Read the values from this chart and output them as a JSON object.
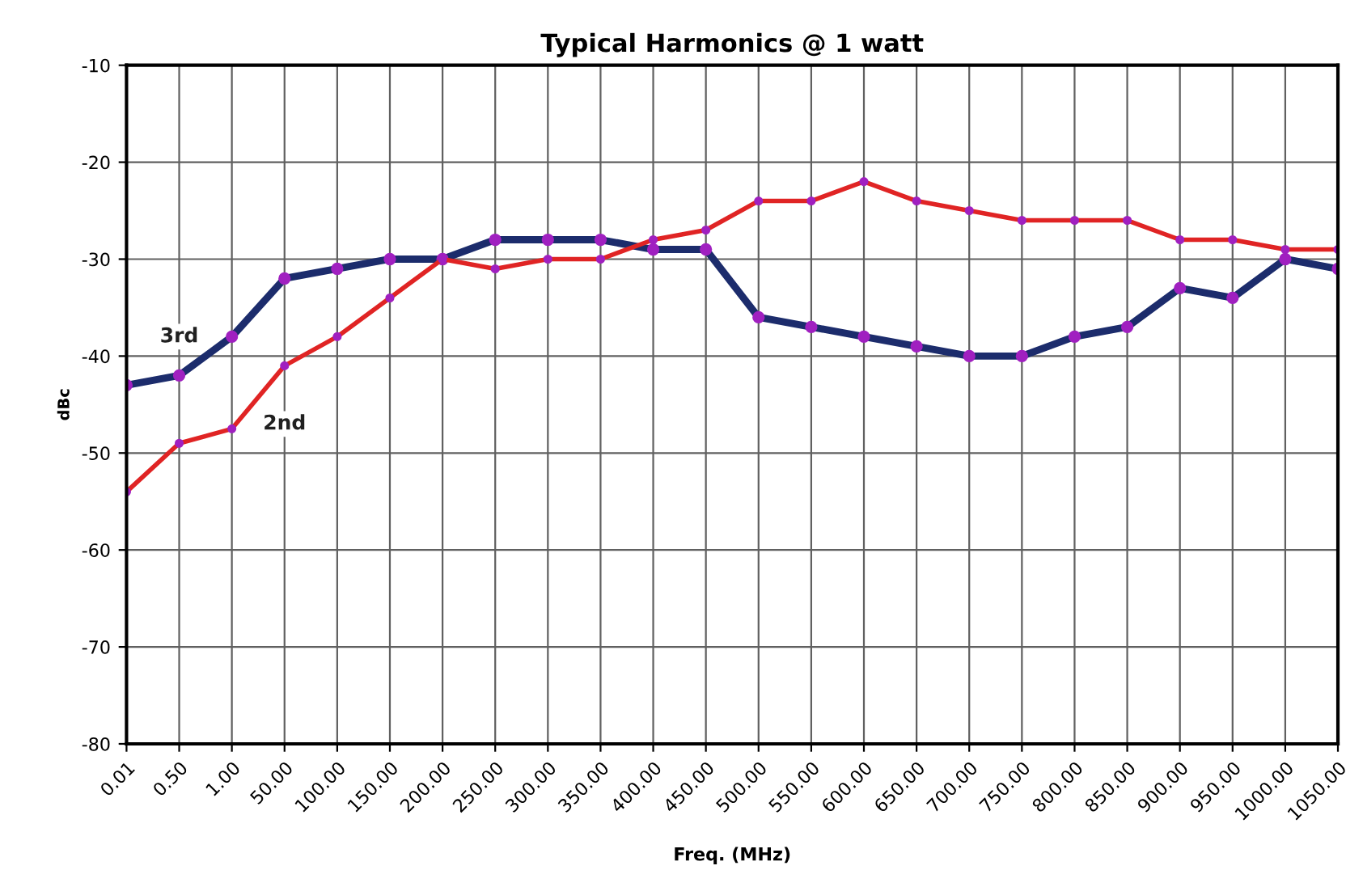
{
  "chart_data": {
    "type": "line",
    "title": "Typical Harmonics @ 1 watt",
    "xlabel": "Freq. (MHz)",
    "ylabel": "dBc",
    "categories": [
      "0.01",
      "0.50",
      "1.00",
      "50.00",
      "100.00",
      "150.00",
      "200.00",
      "250.00",
      "300.00",
      "350.00",
      "400.00",
      "450.00",
      "500.00",
      "550.00",
      "600.00",
      "650.00",
      "700.00",
      "750.00",
      "800.00",
      "850.00",
      "900.00",
      "950.00",
      "1000.00",
      "1050.00"
    ],
    "series": [
      {
        "name": "3rd",
        "color": "#1c2c6c",
        "values": [
          -43,
          -42,
          -38,
          -32,
          -31,
          -30,
          -30,
          -28,
          -28,
          -28,
          -29,
          -29,
          -36,
          -37,
          -38,
          -39,
          -40,
          -40,
          -38,
          -37,
          -33,
          -34,
          -30,
          -31
        ]
      },
      {
        "name": "2nd",
        "color": "#e02424",
        "values": [
          -54,
          -49,
          -47.5,
          -41,
          -38,
          -34,
          -30,
          -31,
          -30,
          -30,
          -28,
          -27,
          -24,
          -24,
          -22,
          -24,
          -25,
          -26,
          -26,
          -26,
          -28,
          -28,
          -29,
          -29
        ]
      }
    ],
    "ylim": [
      -80,
      -10
    ],
    "yticks": [
      -80,
      -70,
      -60,
      -50,
      -40,
      -30,
      -20,
      -10
    ],
    "grid": true,
    "marker": "circle",
    "line_style": "solid",
    "legend": false
  }
}
